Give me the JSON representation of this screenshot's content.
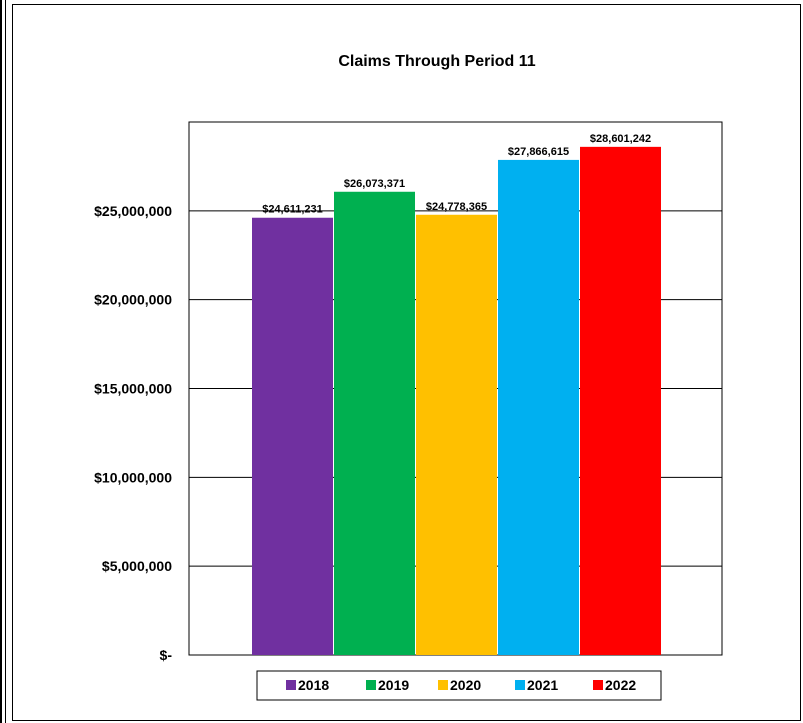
{
  "chart_data": {
    "type": "bar",
    "title": "Claims Through Period 11",
    "xlabel": "",
    "ylabel": "",
    "ylim": [
      0,
      30000000
    ],
    "y_ticks": [
      0,
      5000000,
      10000000,
      15000000,
      20000000,
      25000000
    ],
    "y_tick_labels": [
      "$-",
      "$5,000,000",
      "$10,000,000",
      "$15,000,000",
      "$20,000,000",
      "$25,000,000"
    ],
    "grid": true,
    "legend_position": "bottom",
    "series": [
      {
        "name": "2018",
        "values": [
          24611231
        ],
        "label": "$24,611,231",
        "color": "#7030a0"
      },
      {
        "name": "2019",
        "values": [
          26073371
        ],
        "label": "$26,073,371",
        "color": "#00b050"
      },
      {
        "name": "2020",
        "values": [
          24778365
        ],
        "label": "$24,778,365",
        "color": "#ffc000"
      },
      {
        "name": "2021",
        "values": [
          27866615
        ],
        "label": "$27,866,615",
        "color": "#00b0f0"
      },
      {
        "name": "2022",
        "values": [
          28601242
        ],
        "label": "$28,601,242",
        "color": "#ff0000"
      }
    ]
  }
}
